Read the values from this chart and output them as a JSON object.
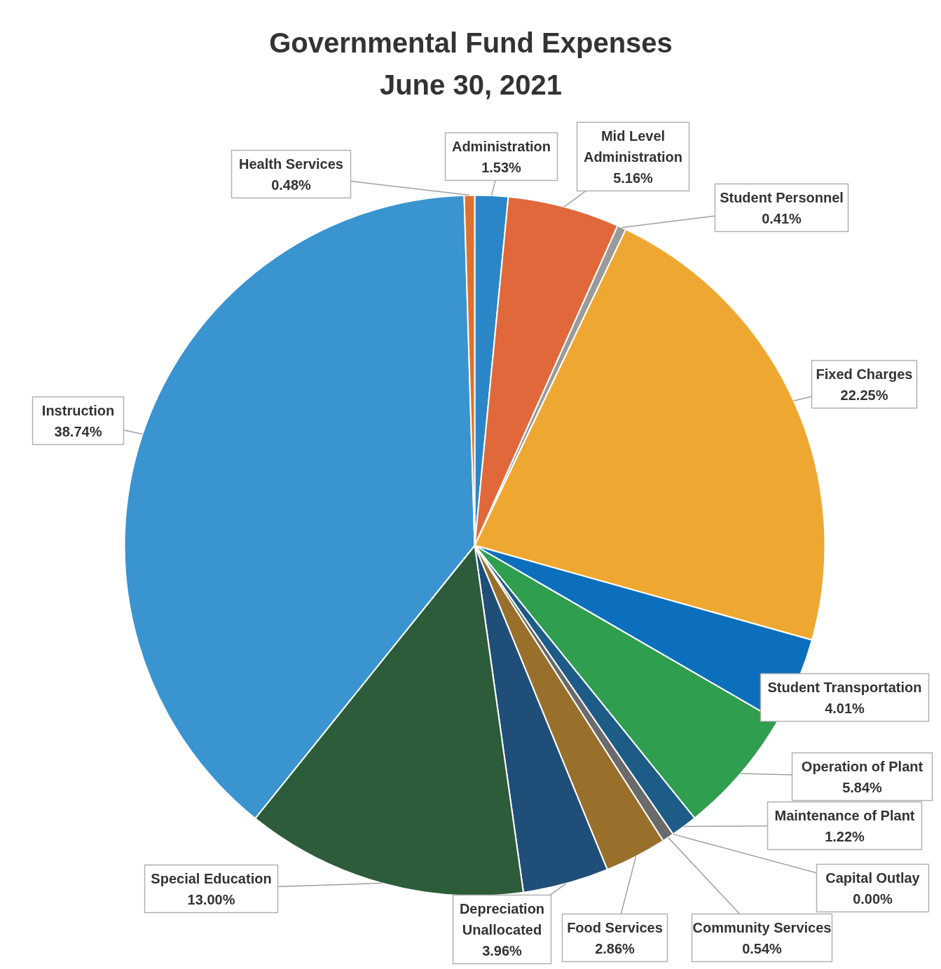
{
  "chart_data": {
    "type": "pie",
    "title": "Governmental Fund Expenses",
    "subtitle": "June 30, 2021",
    "categories": [
      "Administration",
      "Mid Level Administration",
      "Student Personnel",
      "Fixed Charges",
      "Student Transportation",
      "Operation of Plant",
      "Maintenance of Plant",
      "Capital Outlay",
      "Community Services",
      "Food Services",
      "Depreciation Unallocated",
      "Special Education",
      "Instruction",
      "Health Services"
    ],
    "values": [
      1.53,
      5.16,
      0.41,
      22.25,
      4.01,
      5.84,
      1.22,
      0.0,
      0.54,
      2.86,
      3.96,
      13.0,
      38.74,
      0.48
    ],
    "value_labels": [
      "1.53%",
      "5.16%",
      "0.41%",
      "22.25%",
      "4.01%",
      "5.84%",
      "1.22%",
      "0.00%",
      "0.54%",
      "2.86%",
      "3.96%",
      "13.00%",
      "38.74%",
      "0.48%"
    ],
    "colors": [
      "#2a86c6",
      "#e0683a",
      "#9a9a9a",
      "#eea832",
      "#0b6fbd",
      "#2f9e4f",
      "#1d5c86",
      "#5a7a3a",
      "#6a6a6a",
      "#98702c",
      "#1f4e78",
      "#2c5c3a",
      "#3a94d0",
      "#e07030"
    ]
  }
}
